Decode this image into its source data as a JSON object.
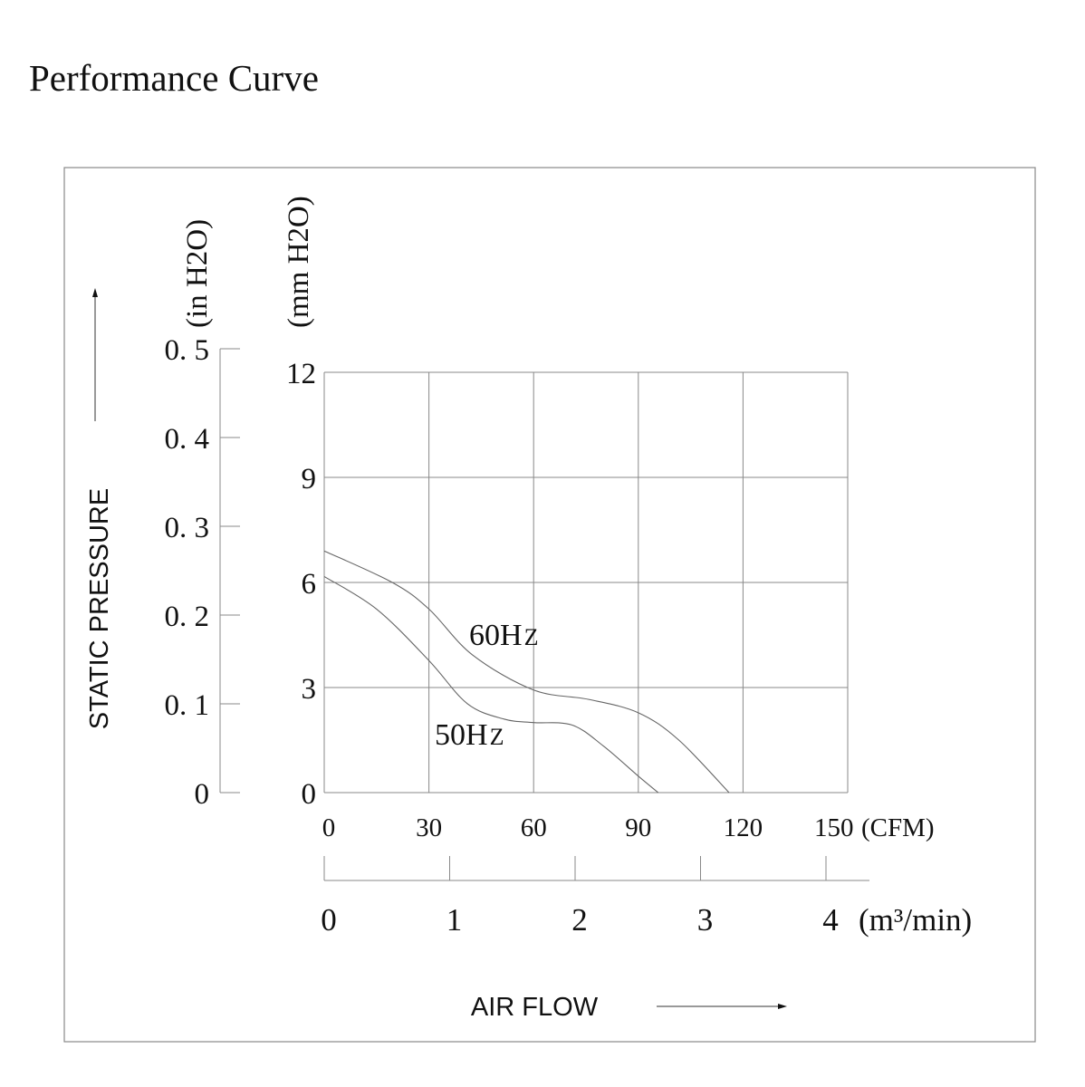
{
  "title": "Performance Curve",
  "chart_data": {
    "type": "line",
    "title": "Performance Curve",
    "xlabel": "AIR FLOW",
    "ylabel": "STATIC PRESSURE",
    "x_unit": "(CFM)",
    "x2_unit": "(m³/min)",
    "y_unit": "(mm H2O)",
    "y2_unit": "(in H2O)",
    "xlim": [
      0,
      150
    ],
    "ylim": [
      0,
      12
    ],
    "x_ticks": [
      "0",
      "30",
      "60",
      "90",
      "120",
      "150"
    ],
    "x_tick_values": [
      0,
      30,
      60,
      90,
      120,
      150
    ],
    "x2_ticks": [
      "0",
      "1",
      "2",
      "3",
      "4"
    ],
    "x2_tick_values": [
      0,
      1,
      2,
      3,
      4
    ],
    "y_ticks": [
      "0",
      "3",
      "6",
      "9",
      "12"
    ],
    "y_tick_values": [
      0,
      3,
      6,
      9,
      12
    ],
    "y2_ticks": [
      "0",
      "0. 1",
      "0. 2",
      "0. 3",
      "0. 4",
      "0. 5"
    ],
    "y2_tick_values": [
      0,
      0.1,
      0.2,
      0.3,
      0.4,
      0.5
    ],
    "grid": true,
    "series": [
      {
        "name": "60Hz",
        "label_main": "60H",
        "label_sub": "Z",
        "x": [
          0,
          19.5,
          30,
          42.5,
          60,
          75.8,
          90,
          101.6,
          116
        ],
        "y": [
          6.9,
          6.0,
          5.24,
          3.93,
          2.93,
          2.66,
          2.28,
          1.5,
          0
        ]
      },
      {
        "name": "50Hz",
        "label_main": "50H",
        "label_sub": "Z",
        "x": [
          0,
          15,
          30,
          41,
          51.5,
          60,
          71,
          80,
          90,
          95.7
        ],
        "y": [
          6.17,
          5.24,
          3.77,
          2.54,
          2.1,
          2.0,
          1.93,
          1.33,
          0.47,
          0
        ]
      }
    ]
  }
}
